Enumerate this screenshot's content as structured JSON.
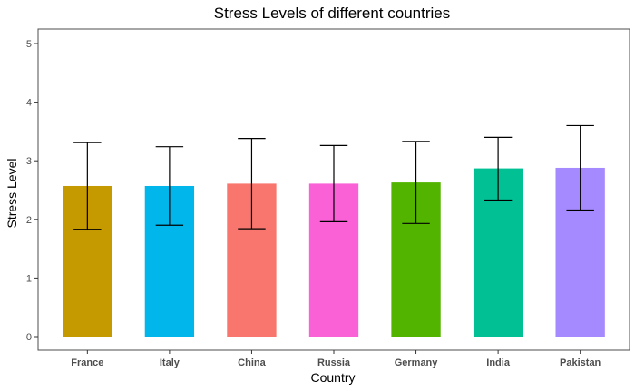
{
  "chart_data": {
    "type": "bar",
    "title": "Stress Levels of different countries",
    "xlabel": "Country",
    "ylabel": "Stress Level",
    "ylim": [
      0,
      5
    ],
    "yticks": [
      0,
      1,
      2,
      3,
      4,
      5
    ],
    "grid": false,
    "legend": "none",
    "categories": [
      "France",
      "Italy",
      "China",
      "Russia",
      "Germany",
      "India",
      "Pakistan"
    ],
    "values": [
      2.57,
      2.57,
      2.61,
      2.61,
      2.63,
      2.87,
      2.88
    ],
    "error_low": [
      1.83,
      1.9,
      1.84,
      1.96,
      1.93,
      2.33,
      2.16
    ],
    "error_high": [
      3.31,
      3.24,
      3.38,
      3.26,
      3.33,
      3.4,
      3.6
    ],
    "colors": [
      "#C49A00",
      "#00B6EB",
      "#F8766D",
      "#FB61D7",
      "#53B400",
      "#00C094",
      "#A58AFF"
    ]
  }
}
